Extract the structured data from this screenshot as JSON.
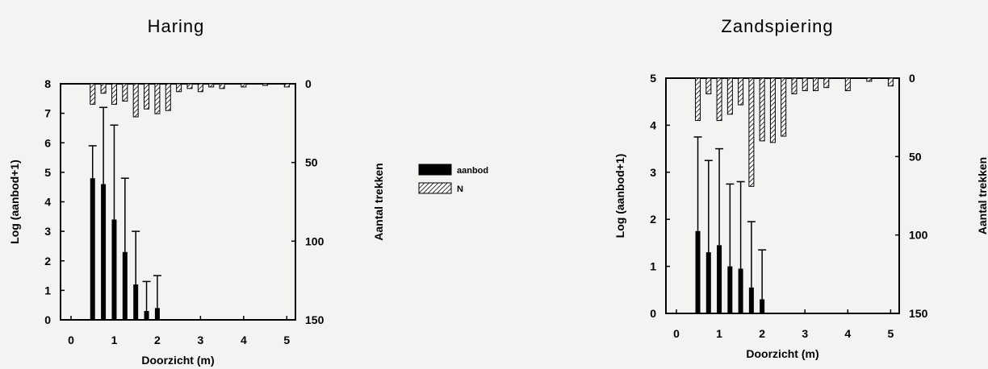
{
  "legend": {
    "items": [
      {
        "label": "aanbod",
        "fill": "solid"
      },
      {
        "label": "N",
        "fill": "hatched"
      }
    ]
  },
  "chart_data": [
    {
      "type": "bar",
      "title": "Haring",
      "xlabel": "Doorzicht (m)",
      "ylabel": "Log (aanbod+1)",
      "y2label": "Aantal trekken",
      "xlim": [
        0,
        5.2
      ],
      "ylim": [
        0,
        8
      ],
      "y2lim": [
        0,
        150
      ],
      "y2_inverted": true,
      "xticks": [
        0,
        1,
        2,
        3,
        4,
        5
      ],
      "yticks": [
        0,
        1,
        2,
        3,
        4,
        5,
        6,
        7,
        8
      ],
      "y2ticks": [
        0,
        50,
        100,
        150
      ],
      "series": [
        {
          "name": "aanbod",
          "axis": "left",
          "x": [
            0.5,
            0.75,
            1.0,
            1.25,
            1.5,
            1.75,
            2.0
          ],
          "values": [
            4.8,
            4.6,
            3.4,
            2.3,
            1.2,
            0.3,
            0.4
          ],
          "error": [
            1.1,
            2.6,
            3.2,
            2.5,
            1.8,
            1.0,
            1.1
          ]
        },
        {
          "name": "N",
          "axis": "right",
          "x": [
            0.5,
            0.75,
            1.0,
            1.25,
            1.5,
            1.75,
            2.0,
            2.25,
            2.5,
            2.75,
            3.0,
            3.25,
            3.5,
            4.0,
            4.5,
            5.0
          ],
          "values": [
            13,
            6,
            13,
            11,
            21,
            16,
            19,
            17,
            5,
            3,
            5,
            2,
            3,
            2,
            1,
            2
          ]
        }
      ]
    },
    {
      "type": "bar",
      "title": "Zandspiering",
      "xlabel": "Doorzicht (m)",
      "ylabel": "Log (aanbod+1)",
      "y2label": "Aantal trekken",
      "xlim": [
        0,
        5.2
      ],
      "ylim": [
        0,
        5
      ],
      "y2lim": [
        0,
        150
      ],
      "y2_inverted": true,
      "xticks": [
        0,
        1,
        2,
        3,
        4,
        5
      ],
      "yticks": [
        0,
        1,
        2,
        3,
        4,
        5
      ],
      "y2ticks": [
        0,
        50,
        100,
        150
      ],
      "series": [
        {
          "name": "aanbod",
          "axis": "left",
          "x": [
            0.5,
            0.75,
            1.0,
            1.25,
            1.5,
            1.75,
            2.0
          ],
          "values": [
            1.75,
            1.3,
            1.45,
            1.0,
            0.95,
            0.55,
            0.3
          ],
          "error": [
            2.0,
            1.95,
            2.05,
            1.75,
            1.85,
            1.4,
            1.05
          ]
        },
        {
          "name": "N",
          "axis": "right",
          "x": [
            0.5,
            0.75,
            1.0,
            1.25,
            1.5,
            1.75,
            2.0,
            2.25,
            2.5,
            2.75,
            3.0,
            3.25,
            3.5,
            4.0,
            4.5,
            5.0
          ],
          "values": [
            27,
            10,
            27,
            23,
            17,
            69,
            40,
            41,
            37,
            10,
            8,
            8,
            6,
            8,
            2,
            5
          ]
        }
      ]
    }
  ]
}
